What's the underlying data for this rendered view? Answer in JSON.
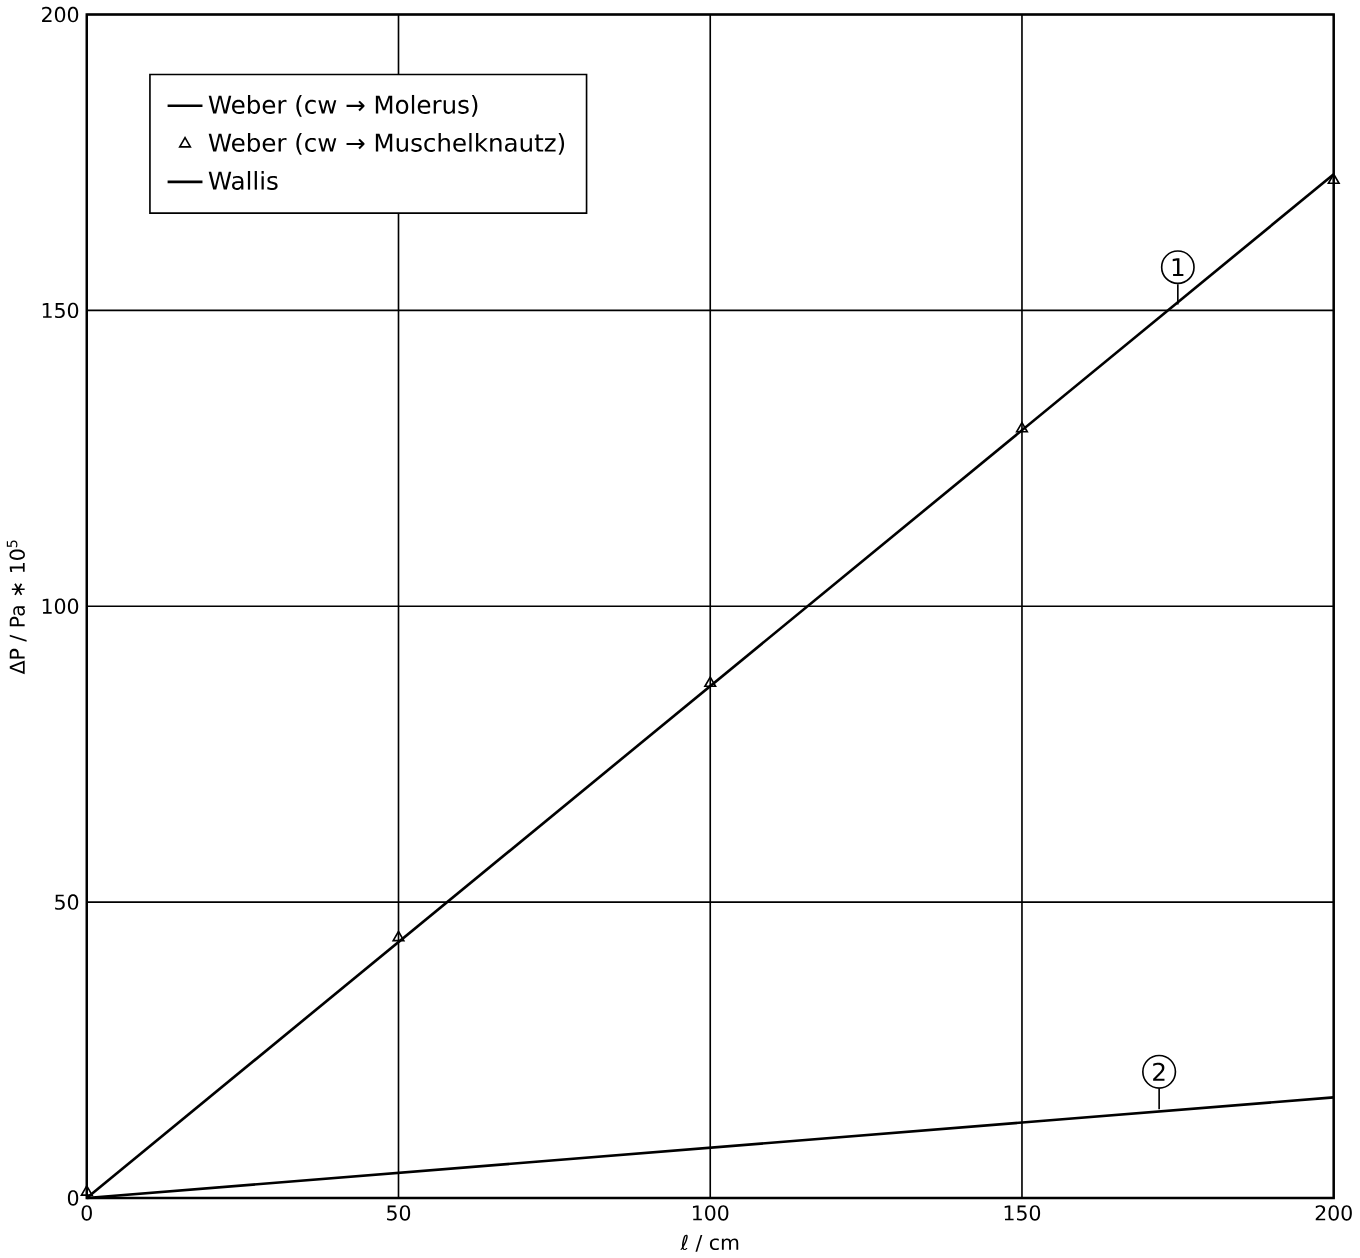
{
  "chart_data": {
    "type": "line",
    "xlabel": "ℓ / cm",
    "ylabel": "ΔP / Pa ∗ 10$^{5}$",
    "xlim": [
      0,
      200
    ],
    "ylim": [
      0,
      200
    ],
    "xticks": [
      0,
      50,
      100,
      150,
      200
    ],
    "yticks": [
      0,
      50,
      100,
      150,
      200
    ],
    "grid": true,
    "legend": "top left",
    "series": [
      {
        "name": "Weber (cw → Molerus)",
        "color": "#000000",
        "x": [
          0,
          200
        ],
        "values": [
          0,
          173
        ]
      },
      {
        "name": "Weber (cw → Muschelknautz)",
        "type": "scatter",
        "marker": "triangle",
        "color": "#000000",
        "x": [
          0,
          50,
          100,
          150,
          200
        ],
        "values": [
          1,
          44,
          87,
          130,
          172
        ]
      },
      {
        "name": "Wallis",
        "color": "#000000",
        "x": [
          0,
          200
        ],
        "values": [
          0,
          17
        ]
      }
    ],
    "annotations": [
      {
        "text": "1",
        "x": 175,
        "y": 151
      },
      {
        "text": "2",
        "x": 172,
        "y": 15
      }
    ]
  }
}
